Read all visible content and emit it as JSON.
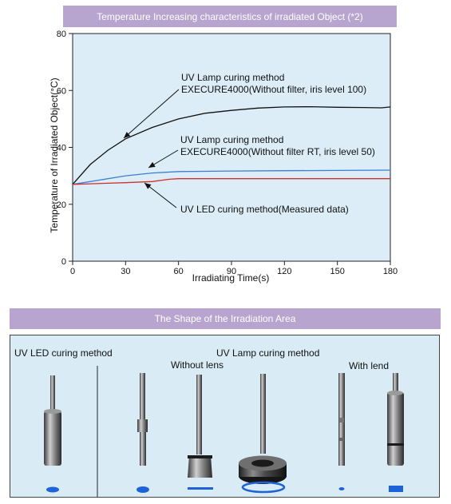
{
  "chart_title": "Temperature Increasing characteristics of irradiated Object (*2)",
  "chart_data": {
    "type": "line",
    "xlabel": "Irradiating Time(s)",
    "ylabel": "Temperature of Irradiated Object(°C)",
    "xlim": [
      0,
      180
    ],
    "ylim": [
      0,
      80
    ],
    "xticks": [
      0,
      30,
      60,
      90,
      120,
      150,
      180
    ],
    "yticks": [
      0,
      20,
      40,
      60,
      80
    ],
    "grid": false,
    "series": [
      {
        "name": "UV Lamp curing method EXECURE4000(Without filter, iris level 100)",
        "color": "#111111",
        "x": [
          0,
          10,
          20,
          30,
          45,
          60,
          75,
          90,
          105,
          120,
          135,
          150,
          165,
          175,
          180
        ],
        "y": [
          27,
          34,
          39,
          43,
          47,
          50,
          52,
          53,
          53.8,
          54.2,
          54.3,
          54.1,
          54,
          53.9,
          54.2
        ]
      },
      {
        "name": "UV Lamp curing method EXECURE4000(Without filter RT, iris level 50)",
        "color": "#3a7fd0",
        "x": [
          0,
          15,
          30,
          45,
          60,
          90,
          120,
          150,
          180
        ],
        "y": [
          27,
          28.5,
          30,
          31,
          31.5,
          31.7,
          31.8,
          31.9,
          32
        ]
      },
      {
        "name": "UV LED curing method(Measured data)",
        "color": "#d0302e",
        "x": [
          0,
          30,
          45,
          55,
          60,
          90,
          120,
          150,
          180
        ],
        "y": [
          27,
          27.6,
          28,
          28.8,
          29,
          29,
          29,
          29,
          29
        ]
      }
    ],
    "annotations": [
      {
        "lines": [
          "UV Lamp curing method",
          "EXECURE4000(Without filter, iris level 100)"
        ]
      },
      {
        "lines": [
          "UV Lamp curing method",
          "EXECURE4000(Without filter RT, iris level 50)"
        ]
      },
      {
        "lines": [
          "UV LED curing method(Measured data)"
        ]
      }
    ]
  },
  "section2": {
    "title": "The Shape of the Irradiation Area",
    "led_label": "UV LED curing method",
    "lamp_label": "UV Lamp curing method",
    "without_lens_label": "Without lens",
    "with_lens_label": "With lend",
    "spot_color": "#1e62d8"
  }
}
